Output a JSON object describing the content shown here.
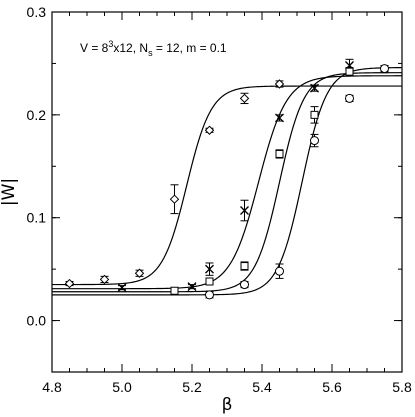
{
  "chart_data": {
    "type": "scatter",
    "xlabel": "β",
    "ylabel": "|W|",
    "xlim": [
      4.8,
      5.8
    ],
    "ylim": [
      -0.05,
      0.3
    ],
    "x_ticks": [
      "4.8",
      "5.0",
      "5.2",
      "5.4",
      "5.6",
      "5.8"
    ],
    "y_ticks": [
      "0.0",
      "0.1",
      "0.2",
      "0.3"
    ],
    "annotation": {
      "prefix": "V = 8",
      "sup": "3",
      "mid": "x12, N",
      "sub": "s",
      "suffix": " = 12, m = 0.1"
    },
    "series": [
      {
        "marker": "diamond",
        "points": [
          {
            "x": 4.85,
            "y": 0.036,
            "err": 0.002
          },
          {
            "x": 4.95,
            "y": 0.04,
            "err": 0.003
          },
          {
            "x": 5.05,
            "y": 0.046,
            "err": 0.003
          },
          {
            "x": 5.15,
            "y": 0.118,
            "err": 0.014
          },
          {
            "x": 5.25,
            "y": 0.185,
            "err": 0.002
          },
          {
            "x": 5.35,
            "y": 0.216,
            "err": 0.005
          },
          {
            "x": 5.45,
            "y": 0.23,
            "err": 0.003
          }
        ],
        "fit": {
          "low": 0.035,
          "high": 0.228,
          "center": 5.185,
          "width": 0.035
        }
      },
      {
        "marker": "x",
        "points": [
          {
            "x": 5.0,
            "y": 0.032,
            "err": 0.002
          },
          {
            "x": 5.2,
            "y": 0.033,
            "err": 0.002
          },
          {
            "x": 5.25,
            "y": 0.05,
            "err": 0.006
          },
          {
            "x": 5.35,
            "y": 0.107,
            "err": 0.01
          },
          {
            "x": 5.45,
            "y": 0.197,
            "err": 0.003
          },
          {
            "x": 5.55,
            "y": 0.226,
            "err": 0.003
          },
          {
            "x": 5.65,
            "y": 0.248,
            "err": 0.006
          }
        ],
        "fit": {
          "low": 0.031,
          "high": 0.238,
          "center": 5.39,
          "width": 0.04
        }
      },
      {
        "marker": "square",
        "points": [
          {
            "x": 5.15,
            "y": 0.029,
            "err": 0.002
          },
          {
            "x": 5.25,
            "y": 0.038,
            "err": 0.003
          },
          {
            "x": 5.35,
            "y": 0.053,
            "err": 0.004
          },
          {
            "x": 5.45,
            "y": 0.162,
            "err": 0.004
          },
          {
            "x": 5.55,
            "y": 0.2,
            "err": 0.008
          },
          {
            "x": 5.65,
            "y": 0.242,
            "err": 0.004
          }
        ],
        "fit": {
          "low": 0.028,
          "high": 0.241,
          "center": 5.45,
          "width": 0.035
        }
      },
      {
        "marker": "circle",
        "points": [
          {
            "x": 5.25,
            "y": 0.025,
            "err": 0.003
          },
          {
            "x": 5.35,
            "y": 0.035,
            "err": 0.003
          },
          {
            "x": 5.45,
            "y": 0.048,
            "err": 0.007
          },
          {
            "x": 5.55,
            "y": 0.175,
            "err": 0.006
          },
          {
            "x": 5.65,
            "y": 0.216,
            "err": 0.003
          },
          {
            "x": 5.75,
            "y": 0.245,
            "err": 0.003
          }
        ],
        "fit": {
          "low": 0.025,
          "high": 0.246,
          "center": 5.515,
          "width": 0.035
        }
      }
    ]
  }
}
